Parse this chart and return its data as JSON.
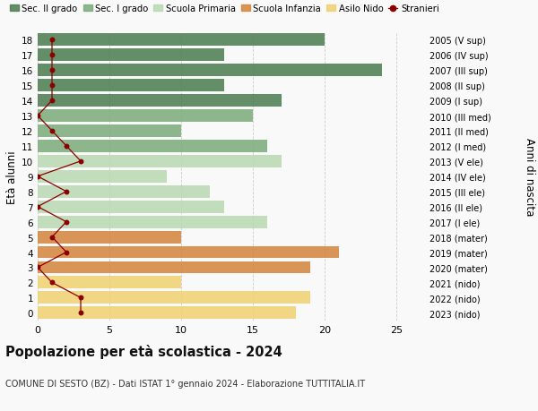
{
  "ages": [
    18,
    17,
    16,
    15,
    14,
    13,
    12,
    11,
    10,
    9,
    8,
    7,
    6,
    5,
    4,
    3,
    2,
    1,
    0
  ],
  "right_labels": [
    "2005 (V sup)",
    "2006 (IV sup)",
    "2007 (III sup)",
    "2008 (II sup)",
    "2009 (I sup)",
    "2010 (III med)",
    "2011 (II med)",
    "2012 (I med)",
    "2013 (V ele)",
    "2014 (IV ele)",
    "2015 (III ele)",
    "2016 (II ele)",
    "2017 (I ele)",
    "2018 (mater)",
    "2019 (mater)",
    "2020 (mater)",
    "2021 (nido)",
    "2022 (nido)",
    "2023 (nido)"
  ],
  "bar_values": [
    20,
    13,
    24,
    13,
    17,
    15,
    10,
    16,
    17,
    9,
    12,
    13,
    16,
    10,
    21,
    19,
    10,
    19,
    18
  ],
  "bar_colors": [
    "#4a7c4e",
    "#4a7c4e",
    "#4a7c4e",
    "#4a7c4e",
    "#4a7c4e",
    "#7aab7a",
    "#7aab7a",
    "#7aab7a",
    "#b8d8b0",
    "#b8d8b0",
    "#b8d8b0",
    "#b8d8b0",
    "#b8d8b0",
    "#d4843a",
    "#d4843a",
    "#d4843a",
    "#f0d070",
    "#f0d070",
    "#f0d070"
  ],
  "stranieri_values": [
    1,
    1,
    1,
    1,
    1,
    0,
    1,
    2,
    3,
    0,
    2,
    0,
    2,
    1,
    2,
    0,
    1,
    3,
    3
  ],
  "legend_labels": [
    "Sec. II grado",
    "Sec. I grado",
    "Scuola Primaria",
    "Scuola Infanzia",
    "Asilo Nido",
    "Stranieri"
  ],
  "legend_colors": [
    "#4a7c4e",
    "#7aab7a",
    "#b8d8b0",
    "#d4843a",
    "#f0d070",
    "#8b0000"
  ],
  "title": "Popolazione per età scolastica - 2024",
  "subtitle": "COMUNE DI SESTO (BZ) - Dati ISTAT 1° gennaio 2024 - Elaborazione TUTTITALIA.IT",
  "ylabel_left": "Età alunni",
  "ylabel_right": "Anni di nascita",
  "xlim": [
    0,
    27
  ],
  "xticks": [
    0,
    5,
    10,
    15,
    20,
    25
  ],
  "background_color": "#f9f9f9",
  "bar_alpha": 0.85,
  "grid_color": "#cccccc"
}
